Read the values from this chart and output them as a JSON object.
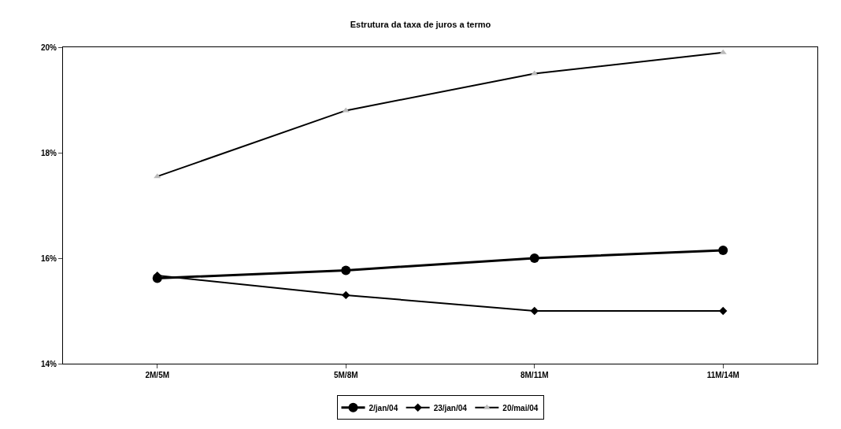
{
  "chart_data": {
    "type": "line",
    "title": "Estrutura da taxa de juros a termo",
    "categories": [
      "2M/5M",
      "5M/8M",
      "8M/11M",
      "11M/14M"
    ],
    "series": [
      {
        "name": "2/jan/04",
        "color": "#000000",
        "marker": "circle",
        "values": [
          15.62,
          15.77,
          16.0,
          16.15
        ]
      },
      {
        "name": "23/jan/04",
        "color": "#000000",
        "marker": "diamond",
        "values": [
          15.67,
          15.3,
          15.0,
          15.0
        ]
      },
      {
        "name": "20/mai/04",
        "color": "#000000",
        "marker": "triangle",
        "values": [
          17.55,
          18.8,
          19.5,
          19.9
        ]
      }
    ],
    "ylim": [
      14,
      20
    ],
    "yticks": [
      {
        "value": 14,
        "label": "14%"
      },
      {
        "value": 16,
        "label": "16%"
      },
      {
        "value": 18,
        "label": "18%"
      },
      {
        "value": 20,
        "label": "20%"
      }
    ],
    "grid": false,
    "legend": "bottom",
    "line_style": "solid"
  }
}
